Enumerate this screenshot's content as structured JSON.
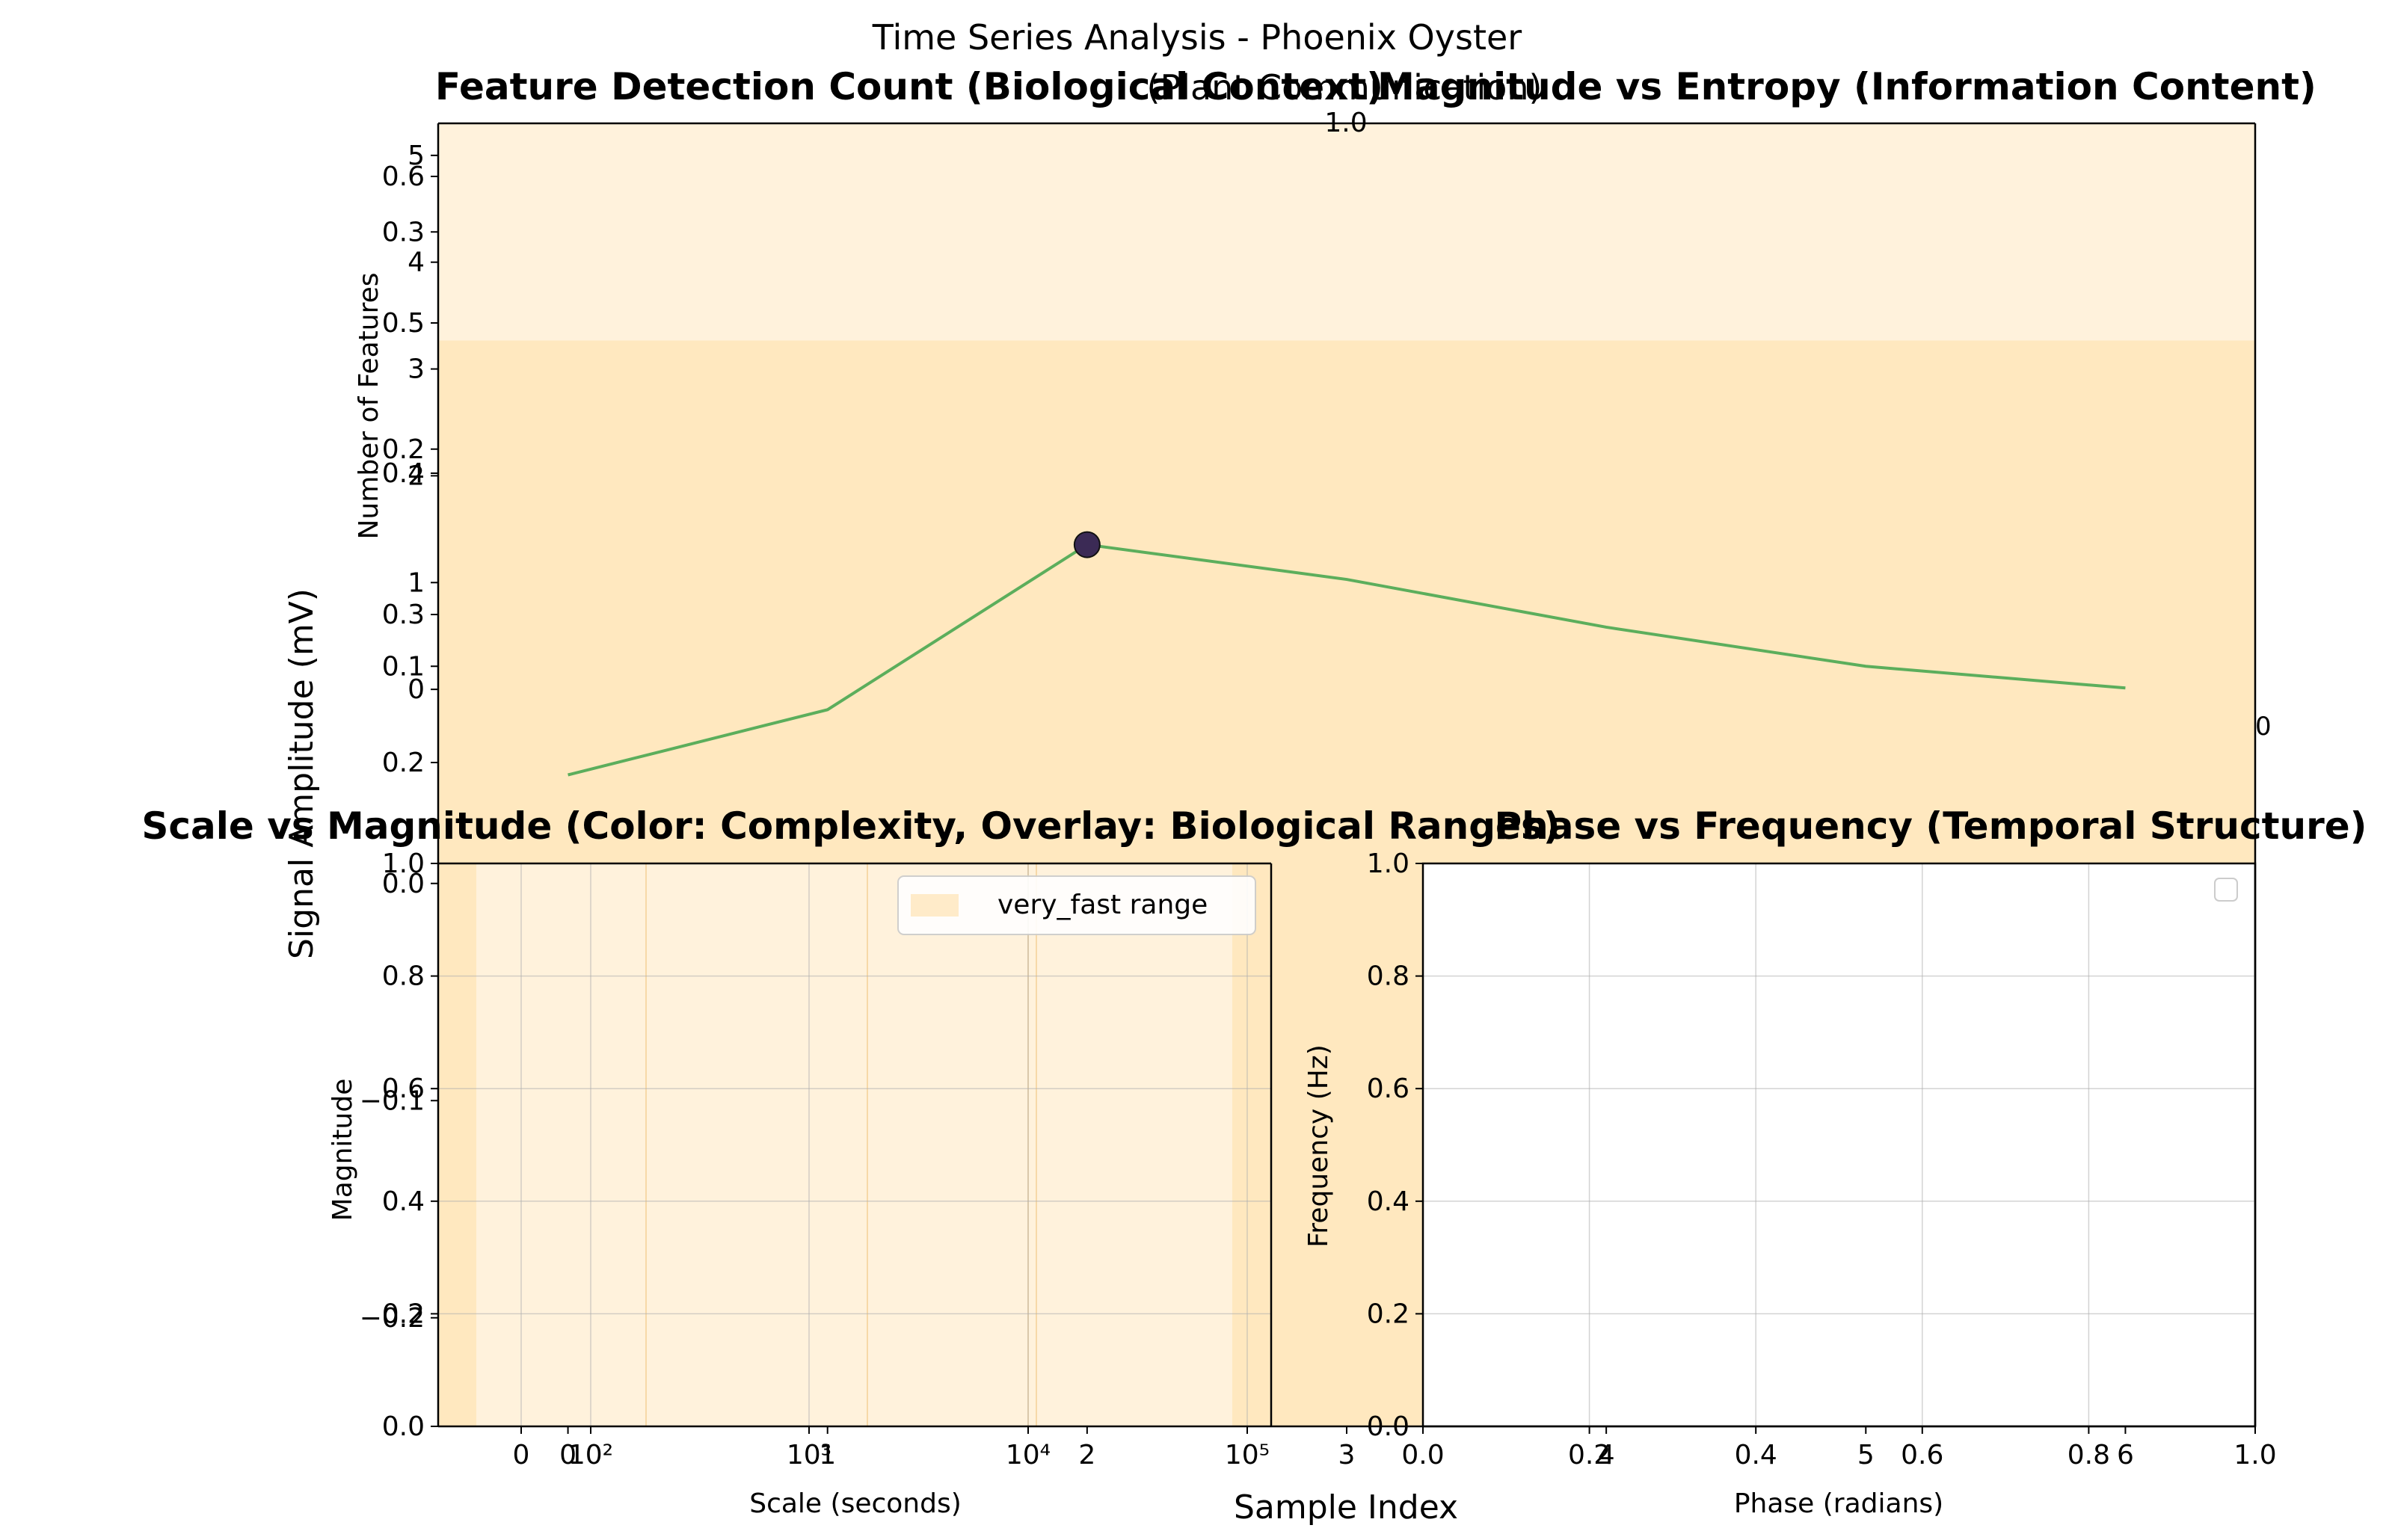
{
  "figure": {
    "suptitle": "Time Series Analysis - Phoenix Oyster",
    "partial_title": "(Plant Communication)"
  },
  "colors": {
    "band": "#ffe8bf",
    "band_light": "#fff2dc",
    "line": "#5cae5c",
    "marker": "#3b2a55",
    "band_edge": "#f7d9a8"
  },
  "chart_data": [
    {
      "id": "signal",
      "type": "line",
      "title": "",
      "xlabel": "Sample Index",
      "ylabel": "Signal Amplitude (mV)",
      "x_ticks": [
        "0",
        "1",
        "2",
        "3",
        "4",
        "5",
        "6"
      ],
      "y_ticks": [
        "-0.2",
        "-0.1",
        "0.0",
        "0.1",
        "0.2",
        "0.3"
      ],
      "xlim": [
        -0.5,
        6.5
      ],
      "ylim": [
        -0.25,
        0.35
      ],
      "x": [
        0,
        1,
        2,
        3,
        4,
        5,
        6
      ],
      "values": [
        0.05,
        0.08,
        0.156,
        0.14,
        0.118,
        0.1,
        0.09
      ],
      "markers": [
        {
          "x": 2,
          "y": 0.156
        }
      ],
      "bands": [
        {
          "from": -0.25,
          "to": 0.25,
          "shade": "band"
        },
        {
          "from": 0.25,
          "to": 0.35,
          "shade": "band_light"
        }
      ]
    },
    {
      "id": "features",
      "type": "bar",
      "title": "Feature Detection Count (Biological Context)",
      "xlabel": "",
      "ylabel": "Number of Features",
      "y_ticks": [
        "0",
        "1",
        "2",
        "3",
        "4",
        "5"
      ],
      "ylim": [
        -1.7,
        5.3
      ]
    },
    {
      "id": "entropy",
      "type": "scatter",
      "title": "Magnitude vs Entropy (Information Content)",
      "xlabel": "",
      "ylabel": "",
      "y_ticks": [
        "0.2",
        "0.4",
        "0.5",
        "0.6",
        "1.0"
      ],
      "right_label": "0"
    },
    {
      "id": "scale",
      "type": "scatter",
      "title": "Scale vs Magnitude (Color: Complexity, Overlay: Biological Ranges)",
      "xlabel": "Scale (seconds)",
      "ylabel": "Magnitude",
      "x_scale": "symlog",
      "x_ticks": [
        "0",
        "10²",
        "10³",
        "10⁴",
        "10⁵"
      ],
      "y_ticks": [
        "0.0",
        "0.2",
        "0.4",
        "0.6",
        "0.8",
        "1.0"
      ],
      "ylim": [
        0,
        1
      ],
      "legend": "very_fast range"
    },
    {
      "id": "phase",
      "type": "scatter",
      "title": "Phase vs Frequency (Temporal Structure)",
      "xlabel": "Phase (radians)",
      "ylabel": "Frequency (Hz)",
      "x_ticks": [
        "0.0",
        "0.2",
        "0.4",
        "0.6",
        "0.8",
        "1.0"
      ],
      "y_ticks": [
        "0.0",
        "0.2",
        "0.4",
        "0.6",
        "0.8",
        "1.0"
      ],
      "xlim": [
        0,
        1
      ],
      "ylim": [
        0,
        1
      ]
    }
  ]
}
